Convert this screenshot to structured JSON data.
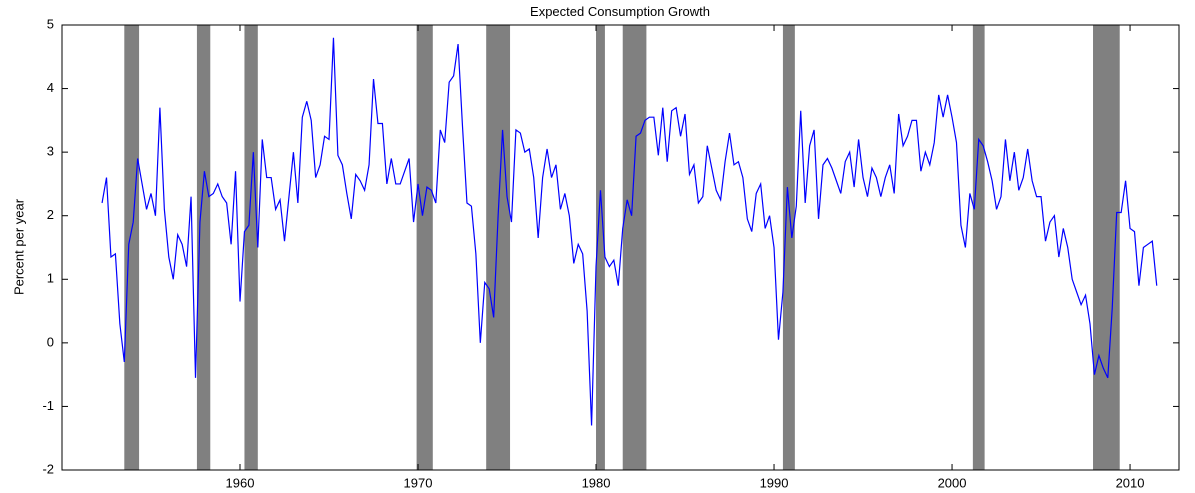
{
  "chart_data": {
    "type": "line",
    "title": "Expected Consumption Growth",
    "y_label": "Percent per year",
    "xlim": [
      1950,
      2012.75
    ],
    "ylim": [
      -2,
      5
    ],
    "xticks": [
      1960,
      1970,
      1980,
      1990,
      2000,
      2010
    ],
    "yticks": [
      -2,
      -1,
      0,
      1,
      2,
      3,
      4,
      5
    ],
    "recession_color": "#808080",
    "recessions": [
      [
        1953.5,
        1954.33
      ],
      [
        1957.58,
        1958.33
      ],
      [
        1960.25,
        1961.0
      ],
      [
        1969.92,
        1970.83
      ],
      [
        1973.83,
        1975.17
      ],
      [
        1980.0,
        1980.5
      ],
      [
        1981.5,
        1982.83
      ],
      [
        1990.5,
        1991.17
      ],
      [
        2001.17,
        2001.83
      ],
      [
        2007.92,
        2009.42
      ]
    ],
    "x": [
      1952.25,
      1952.5,
      1952.75,
      1953,
      1953.25,
      1953.5,
      1953.75,
      1954,
      1954.25,
      1954.5,
      1954.75,
      1955,
      1955.25,
      1955.5,
      1955.75,
      1956,
      1956.25,
      1956.5,
      1956.75,
      1957,
      1957.25,
      1957.5,
      1957.75,
      1958,
      1958.25,
      1958.5,
      1958.75,
      1959,
      1959.25,
      1959.5,
      1959.75,
      1960,
      1960.25,
      1960.5,
      1960.75,
      1961,
      1961.25,
      1961.5,
      1961.75,
      1962,
      1962.25,
      1962.5,
      1962.75,
      1963,
      1963.25,
      1963.5,
      1963.75,
      1964,
      1964.25,
      1964.5,
      1964.75,
      1965,
      1965.25,
      1965.5,
      1965.75,
      1966,
      1966.25,
      1966.5,
      1966.75,
      1967,
      1967.25,
      1967.5,
      1967.75,
      1968,
      1968.25,
      1968.5,
      1968.75,
      1969,
      1969.25,
      1969.5,
      1969.75,
      1970,
      1970.25,
      1970.5,
      1970.75,
      1971,
      1971.25,
      1971.5,
      1971.75,
      1972,
      1972.25,
      1972.5,
      1972.75,
      1973,
      1973.25,
      1973.5,
      1973.75,
      1974,
      1974.25,
      1974.5,
      1974.75,
      1975,
      1975.25,
      1975.5,
      1975.75,
      1976,
      1976.25,
      1976.5,
      1976.75,
      1977,
      1977.25,
      1977.5,
      1977.75,
      1978,
      1978.25,
      1978.5,
      1978.75,
      1979,
      1979.25,
      1979.5,
      1979.75,
      1980,
      1980.25,
      1980.5,
      1980.75,
      1981,
      1981.25,
      1981.5,
      1981.75,
      1982,
      1982.25,
      1982.5,
      1982.75,
      1983,
      1983.25,
      1983.5,
      1983.75,
      1984,
      1984.25,
      1984.5,
      1984.75,
      1985,
      1985.25,
      1985.5,
      1985.75,
      1986,
      1986.25,
      1986.5,
      1986.75,
      1987,
      1987.25,
      1987.5,
      1987.75,
      1988,
      1988.25,
      1988.5,
      1988.75,
      1989,
      1989.25,
      1989.5,
      1989.75,
      1990,
      1990.25,
      1990.5,
      1990.75,
      1991,
      1991.25,
      1991.5,
      1991.75,
      1992,
      1992.25,
      1992.5,
      1992.75,
      1993,
      1993.25,
      1993.5,
      1993.75,
      1994,
      1994.25,
      1994.5,
      1994.75,
      1995,
      1995.25,
      1995.5,
      1995.75,
      1996,
      1996.25,
      1996.5,
      1996.75,
      1997,
      1997.25,
      1997.5,
      1997.75,
      1998,
      1998.25,
      1998.5,
      1998.75,
      1999,
      1999.25,
      1999.5,
      1999.75,
      2000,
      2000.25,
      2000.5,
      2000.75,
      2001,
      2001.25,
      2001.5,
      2001.75,
      2002,
      2002.25,
      2002.5,
      2002.75,
      2003,
      2003.25,
      2003.5,
      2003.75,
      2004,
      2004.25,
      2004.5,
      2004.75,
      2005,
      2005.25,
      2005.5,
      2005.75,
      2006,
      2006.25,
      2006.5,
      2006.75,
      2007,
      2007.25,
      2007.5,
      2007.75,
      2008,
      2008.25,
      2008.5,
      2008.75,
      2009,
      2009.25,
      2009.5,
      2009.75,
      2010,
      2010.25,
      2010.5,
      2010.75,
      2011,
      2011.25,
      2011.5
    ],
    "series": [
      {
        "color": "#0000ff",
        "values": [
          2.2,
          2.6,
          1.35,
          1.4,
          0.3,
          -0.3,
          1.55,
          1.9,
          2.9,
          2.5,
          2.1,
          2.35,
          2.0,
          3.7,
          2.1,
          1.35,
          1.0,
          1.7,
          1.55,
          1.2,
          2.3,
          -0.55,
          1.9,
          2.7,
          2.3,
          2.35,
          2.5,
          2.3,
          2.2,
          1.55,
          2.7,
          0.65,
          1.75,
          1.85,
          3.0,
          1.5,
          3.2,
          2.6,
          2.6,
          2.1,
          2.25,
          1.6,
          2.3,
          3.0,
          2.2,
          3.55,
          3.8,
          3.5,
          2.6,
          2.8,
          3.25,
          3.2,
          4.8,
          2.95,
          2.8,
          2.35,
          1.95,
          2.65,
          2.55,
          2.4,
          2.8,
          4.15,
          3.45,
          3.45,
          2.5,
          2.9,
          2.5,
          2.5,
          2.7,
          2.9,
          1.9,
          2.5,
          2.0,
          2.45,
          2.4,
          2.2,
          3.35,
          3.15,
          4.1,
          4.2,
          4.7,
          3.4,
          2.2,
          2.15,
          1.4,
          0.0,
          0.95,
          0.85,
          0.4,
          2.0,
          3.35,
          2.3,
          1.9,
          3.35,
          3.3,
          3.0,
          3.05,
          2.6,
          1.65,
          2.6,
          3.05,
          2.6,
          2.8,
          2.1,
          2.35,
          2.0,
          1.25,
          1.55,
          1.4,
          0.5,
          -1.3,
          1.2,
          2.4,
          1.35,
          1.2,
          1.3,
          0.9,
          1.8,
          2.25,
          2.0,
          3.25,
          3.3,
          3.5,
          3.55,
          3.55,
          2.95,
          3.7,
          2.85,
          3.65,
          3.7,
          3.25,
          3.6,
          2.65,
          2.8,
          2.2,
          2.3,
          3.1,
          2.75,
          2.4,
          2.25,
          2.85,
          3.3,
          2.8,
          2.85,
          2.6,
          1.95,
          1.75,
          2.35,
          2.5,
          1.8,
          2.0,
          1.5,
          0.05,
          0.8,
          2.45,
          1.65,
          2.15,
          3.65,
          2.2,
          3.1,
          3.35,
          1.95,
          2.8,
          2.9,
          2.75,
          2.55,
          2.35,
          2.85,
          3.0,
          2.45,
          3.2,
          2.6,
          2.3,
          2.75,
          2.6,
          2.3,
          2.6,
          2.8,
          2.35,
          3.6,
          3.1,
          3.25,
          3.5,
          3.5,
          2.7,
          3.0,
          2.8,
          3.15,
          3.9,
          3.55,
          3.9,
          3.55,
          3.15,
          1.85,
          1.5,
          2.35,
          2.1,
          3.2,
          3.1,
          2.85,
          2.55,
          2.1,
          2.3,
          3.2,
          2.55,
          3.0,
          2.4,
          2.6,
          3.05,
          2.55,
          2.3,
          2.3,
          1.6,
          1.9,
          2.0,
          1.35,
          1.8,
          1.5,
          1.0,
          0.8,
          0.6,
          0.75,
          0.3,
          -0.5,
          -0.2,
          -0.4,
          -0.55,
          0.55,
          2.05,
          2.05,
          2.55,
          1.8,
          1.75,
          0.9,
          1.5,
          1.55,
          1.6,
          0.9
        ]
      }
    ]
  }
}
